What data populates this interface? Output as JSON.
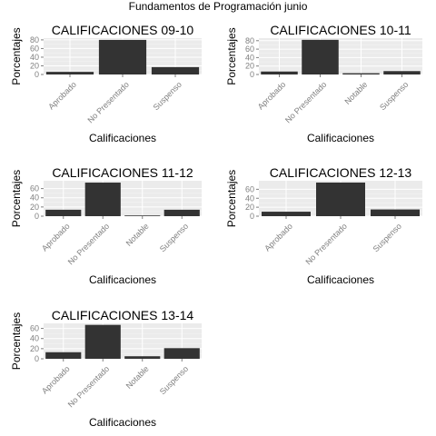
{
  "figure_title": "Fundamentos de Programación junio",
  "chart_data": [
    {
      "type": "bar",
      "title": "CALIFICACIONES 09-10",
      "xlabel": "Calificaciones",
      "ylabel": "Porcentajes",
      "categories": [
        "Aprobado",
        "No Presentado",
        "Suspenso"
      ],
      "values": [
        6,
        80,
        17
      ],
      "yticks": [
        0,
        20,
        40,
        60,
        80
      ],
      "ylim": [
        0,
        84
      ],
      "grid": true
    },
    {
      "type": "bar",
      "title": "CALIFICACIONES 10-11",
      "xlabel": "Calificaciones",
      "ylabel": "Porcentajes",
      "categories": [
        "Aprobado",
        "No Presentado",
        "Notable",
        "Suspenso"
      ],
      "values": [
        7,
        82,
        3,
        8
      ],
      "yticks": [
        0,
        20,
        40,
        60,
        80
      ],
      "ylim": [
        0,
        86
      ],
      "grid": true
    },
    {
      "type": "bar",
      "title": "CALIFICACIONES 11-12",
      "xlabel": "Calificaciones",
      "ylabel": "Porcentajes",
      "categories": [
        "Aprobado",
        "No Presentado",
        "Notable",
        "Suspenso"
      ],
      "values": [
        14,
        73,
        1.5,
        14
      ],
      "yticks": [
        0,
        20,
        40,
        60
      ],
      "ylim": [
        0,
        77
      ],
      "grid": true
    },
    {
      "type": "bar",
      "title": "CALIFICACIONES 12-13",
      "xlabel": "Calificaciones",
      "ylabel": "Porcentajes",
      "categories": [
        "Aprobado",
        "No Presentado",
        "Suspenso"
      ],
      "values": [
        10,
        75,
        15
      ],
      "yticks": [
        0,
        20,
        40,
        60
      ],
      "ylim": [
        0,
        79
      ],
      "grid": true
    },
    {
      "type": "bar",
      "title": "CALIFICACIONES 13-14",
      "xlabel": "Calificaciones",
      "ylabel": "Porcentajes",
      "categories": [
        "Aprobado",
        "No Presentado",
        "Notable",
        "Suspenso"
      ],
      "values": [
        13,
        67,
        5,
        21
      ],
      "yticks": [
        0,
        20,
        40,
        60
      ],
      "ylim": [
        0,
        70
      ],
      "grid": true
    }
  ]
}
